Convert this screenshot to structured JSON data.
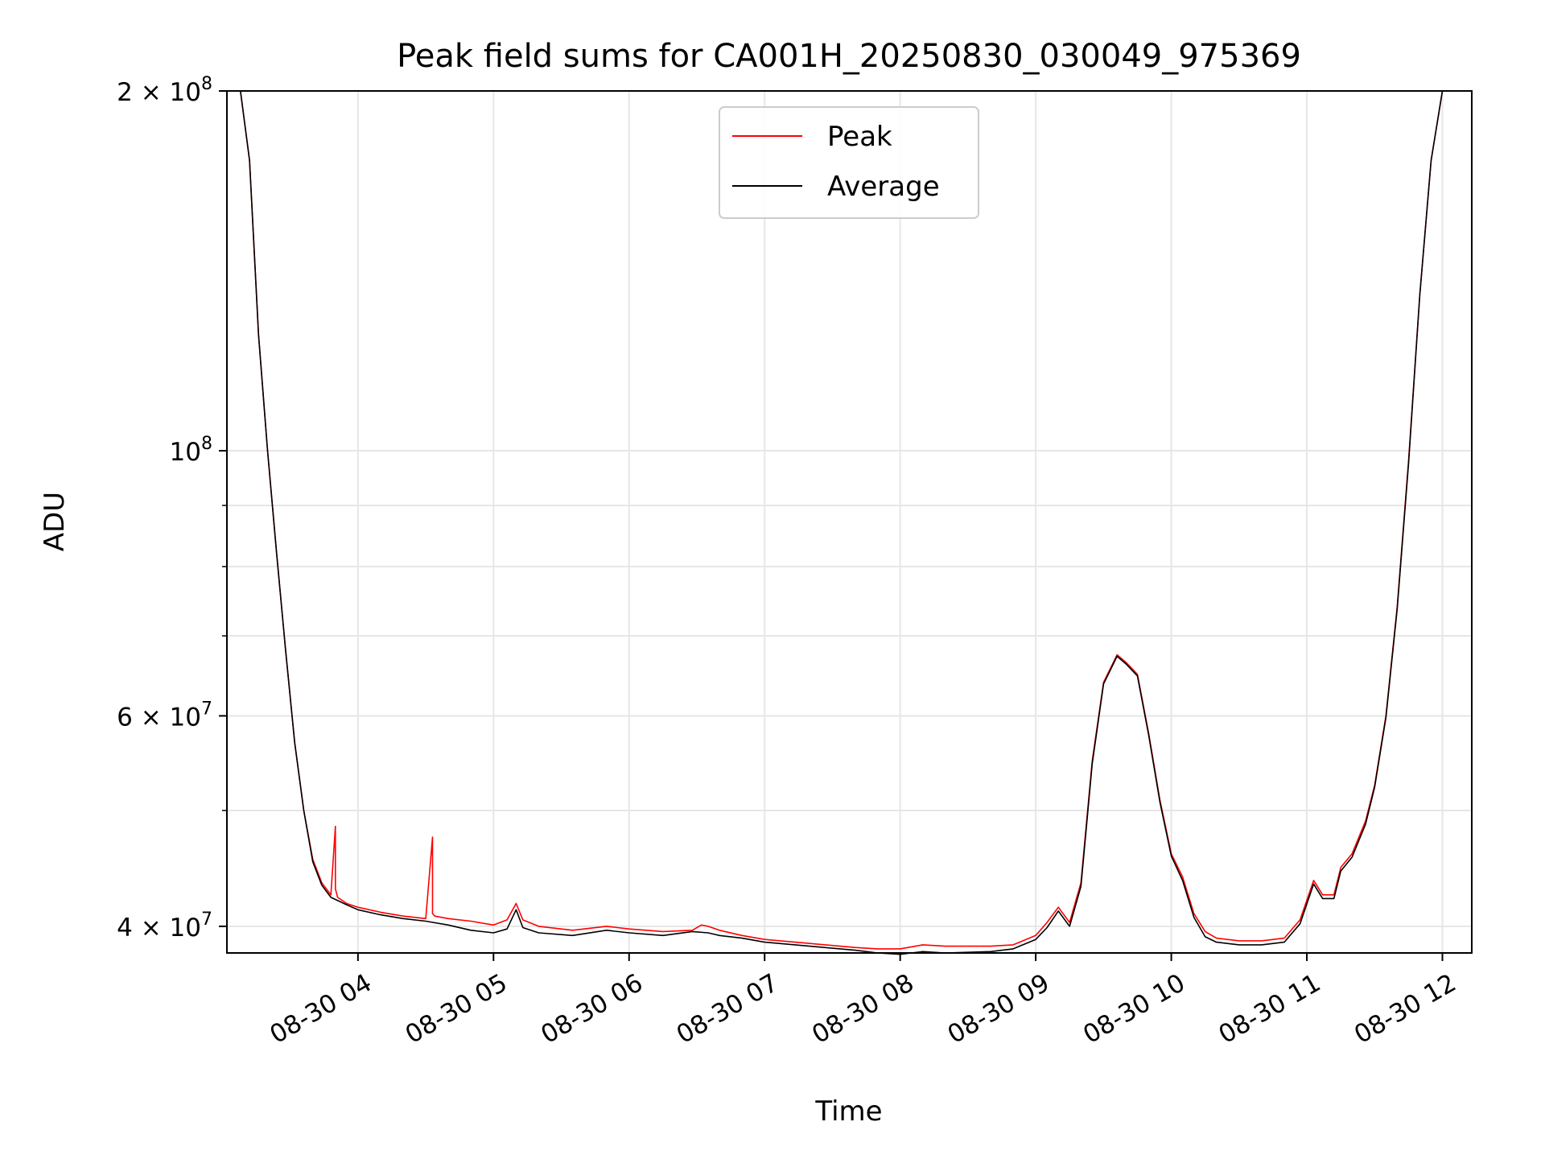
{
  "chart_data": {
    "type": "line",
    "title": "Peak field sums for CA001H_20250830_030049_975369",
    "xlabel": "Time",
    "ylabel": "ADU",
    "x_scale": "time",
    "y_scale": "log",
    "xlim": [
      "2025-08-30 03:02",
      "2025-08-30 12:13"
    ],
    "ylim": [
      38000000,
      200000000
    ],
    "grid": true,
    "legend_position": "top-center",
    "x_ticks": [
      {
        "value": "2025-08-30 04:00",
        "label": "08-30 04"
      },
      {
        "value": "2025-08-30 05:00",
        "label": "08-30 05"
      },
      {
        "value": "2025-08-30 06:00",
        "label": "08-30 06"
      },
      {
        "value": "2025-08-30 07:00",
        "label": "08-30 07"
      },
      {
        "value": "2025-08-30 08:00",
        "label": "08-30 08"
      },
      {
        "value": "2025-08-30 09:00",
        "label": "08-30 09"
      },
      {
        "value": "2025-08-30 10:00",
        "label": "08-30 10"
      },
      {
        "value": "2025-08-30 11:00",
        "label": "08-30 11"
      },
      {
        "value": "2025-08-30 12:00",
        "label": "08-30 12"
      }
    ],
    "y_ticks": [
      {
        "value": 40000000,
        "base": "4 × 10",
        "exp": "7"
      },
      {
        "value": 60000000,
        "base": "6 × 10",
        "exp": "7"
      },
      {
        "value": 100000000,
        "base": "10",
        "exp": "8"
      },
      {
        "value": 200000000,
        "base": "2 × 10",
        "exp": "8"
      }
    ],
    "y_minor_ticks": [
      50000000,
      70000000,
      80000000,
      90000000
    ],
    "series": [
      {
        "name": "Peak",
        "color": "#ff0000",
        "x": [
          "2025-08-30 03:02",
          "2025-08-30 03:08",
          "2025-08-30 03:12",
          "2025-08-30 03:16",
          "2025-08-30 03:20",
          "2025-08-30 03:24",
          "2025-08-30 03:28",
          "2025-08-30 03:32",
          "2025-08-30 03:36",
          "2025-08-30 03:40",
          "2025-08-30 03:44",
          "2025-08-30 03:48",
          "2025-08-30 03:50",
          "2025-08-30 03:50",
          "2025-08-30 03:51",
          "2025-08-30 03:55",
          "2025-08-30 04:00",
          "2025-08-30 04:10",
          "2025-08-30 04:20",
          "2025-08-30 04:30",
          "2025-08-30 04:33",
          "2025-08-30 04:33",
          "2025-08-30 04:34",
          "2025-08-30 04:40",
          "2025-08-30 04:50",
          "2025-08-30 05:00",
          "2025-08-30 05:06",
          "2025-08-30 05:10",
          "2025-08-30 05:13",
          "2025-08-30 05:20",
          "2025-08-30 05:35",
          "2025-08-30 05:50",
          "2025-08-30 06:00",
          "2025-08-30 06:15",
          "2025-08-30 06:28",
          "2025-08-30 06:32",
          "2025-08-30 06:35",
          "2025-08-30 06:40",
          "2025-08-30 06:50",
          "2025-08-30 07:00",
          "2025-08-30 07:20",
          "2025-08-30 07:40",
          "2025-08-30 07:50",
          "2025-08-30 08:00",
          "2025-08-30 08:10",
          "2025-08-30 08:20",
          "2025-08-30 08:40",
          "2025-08-30 08:50",
          "2025-08-30 09:00",
          "2025-08-30 09:05",
          "2025-08-30 09:10",
          "2025-08-30 09:15",
          "2025-08-30 09:20",
          "2025-08-30 09:25",
          "2025-08-30 09:30",
          "2025-08-30 09:36",
          "2025-08-30 09:40",
          "2025-08-30 09:45",
          "2025-08-30 09:50",
          "2025-08-30 09:55",
          "2025-08-30 10:00",
          "2025-08-30 10:05",
          "2025-08-30 10:10",
          "2025-08-30 10:15",
          "2025-08-30 10:20",
          "2025-08-30 10:30",
          "2025-08-30 10:40",
          "2025-08-30 10:50",
          "2025-08-30 10:57",
          "2025-08-30 11:03",
          "2025-08-30 11:07",
          "2025-08-30 11:12",
          "2025-08-30 11:15",
          "2025-08-30 11:20",
          "2025-08-30 11:26",
          "2025-08-30 11:30",
          "2025-08-30 11:35",
          "2025-08-30 11:40",
          "2025-08-30 11:45",
          "2025-08-30 11:50",
          "2025-08-30 11:55",
          "2025-08-30 12:00",
          "2025-08-30 12:02"
        ],
        "y": [
          200000000,
          200000000,
          175000000,
          125000000,
          100000000,
          82000000,
          68000000,
          57000000,
          50000000,
          45500000,
          43500000,
          42500000,
          48500000,
          43000000,
          42300000,
          41800000,
          41500000,
          41100000,
          40800000,
          40600000,
          47500000,
          41000000,
          40800000,
          40600000,
          40400000,
          40100000,
          40500000,
          41800000,
          40500000,
          40000000,
          39700000,
          40000000,
          39800000,
          39600000,
          39700000,
          40100000,
          40000000,
          39700000,
          39300000,
          39000000,
          38700000,
          38400000,
          38300000,
          38300000,
          38600000,
          38500000,
          38500000,
          38600000,
          39300000,
          40300000,
          41500000,
          40300000,
          43500000,
          55000000,
          64000000,
          67500000,
          66500000,
          65000000,
          58000000,
          51000000,
          46000000,
          44000000,
          41000000,
          39600000,
          39100000,
          38900000,
          38900000,
          39100000,
          40500000,
          43700000,
          42500000,
          42500000,
          44800000,
          46000000,
          49000000,
          52500000,
          60000000,
          74000000,
          98000000,
          135000000,
          175000000,
          200000000,
          200000000
        ]
      },
      {
        "name": "Average",
        "color": "#000000",
        "x": [
          "2025-08-30 03:02",
          "2025-08-30 03:08",
          "2025-08-30 03:12",
          "2025-08-30 03:16",
          "2025-08-30 03:20",
          "2025-08-30 03:24",
          "2025-08-30 03:28",
          "2025-08-30 03:32",
          "2025-08-30 03:36",
          "2025-08-30 03:40",
          "2025-08-30 03:44",
          "2025-08-30 03:48",
          "2025-08-30 03:55",
          "2025-08-30 04:00",
          "2025-08-30 04:10",
          "2025-08-30 04:20",
          "2025-08-30 04:30",
          "2025-08-30 04:40",
          "2025-08-30 04:50",
          "2025-08-30 05:00",
          "2025-08-30 05:06",
          "2025-08-30 05:10",
          "2025-08-30 05:13",
          "2025-08-30 05:20",
          "2025-08-30 05:35",
          "2025-08-30 05:50",
          "2025-08-30 06:00",
          "2025-08-30 06:15",
          "2025-08-30 06:28",
          "2025-08-30 06:35",
          "2025-08-30 06:40",
          "2025-08-30 06:50",
          "2025-08-30 07:00",
          "2025-08-30 07:20",
          "2025-08-30 07:40",
          "2025-08-30 07:50",
          "2025-08-30 08:00",
          "2025-08-30 08:10",
          "2025-08-30 08:20",
          "2025-08-30 08:40",
          "2025-08-30 08:50",
          "2025-08-30 09:00",
          "2025-08-30 09:05",
          "2025-08-30 09:10",
          "2025-08-30 09:15",
          "2025-08-30 09:20",
          "2025-08-30 09:25",
          "2025-08-30 09:30",
          "2025-08-30 09:36",
          "2025-08-30 09:40",
          "2025-08-30 09:45",
          "2025-08-30 09:50",
          "2025-08-30 09:55",
          "2025-08-30 10:00",
          "2025-08-30 10:05",
          "2025-08-30 10:10",
          "2025-08-30 10:15",
          "2025-08-30 10:20",
          "2025-08-30 10:30",
          "2025-08-30 10:40",
          "2025-08-30 10:50",
          "2025-08-30 10:57",
          "2025-08-30 11:03",
          "2025-08-30 11:07",
          "2025-08-30 11:12",
          "2025-08-30 11:15",
          "2025-08-30 11:20",
          "2025-08-30 11:26",
          "2025-08-30 11:30",
          "2025-08-30 11:35",
          "2025-08-30 11:40",
          "2025-08-30 11:45",
          "2025-08-30 11:50",
          "2025-08-30 11:55",
          "2025-08-30 12:00",
          "2025-08-30 12:02"
        ],
        "y": [
          200000000,
          200000000,
          175000000,
          125000000,
          100000000,
          82000000,
          68000000,
          57000000,
          50000000,
          45300000,
          43300000,
          42300000,
          41700000,
          41300000,
          40900000,
          40600000,
          40400000,
          40100000,
          39700000,
          39500000,
          39800000,
          41300000,
          39900000,
          39500000,
          39300000,
          39700000,
          39500000,
          39300000,
          39600000,
          39500000,
          39300000,
          39100000,
          38800000,
          38500000,
          38200000,
          38000000,
          37900000,
          38100000,
          38000000,
          38100000,
          38300000,
          39000000,
          39900000,
          41200000,
          40000000,
          43200000,
          54700000,
          63800000,
          67300000,
          66300000,
          64800000,
          57800000,
          50800000,
          45800000,
          43700000,
          40700000,
          39200000,
          38800000,
          38600000,
          38600000,
          38800000,
          40200000,
          43400000,
          42200000,
          42200000,
          44500000,
          45700000,
          48700000,
          52300000,
          59800000,
          73700000,
          97500000,
          135000000,
          175000000,
          200000000,
          200000000
        ]
      }
    ]
  }
}
